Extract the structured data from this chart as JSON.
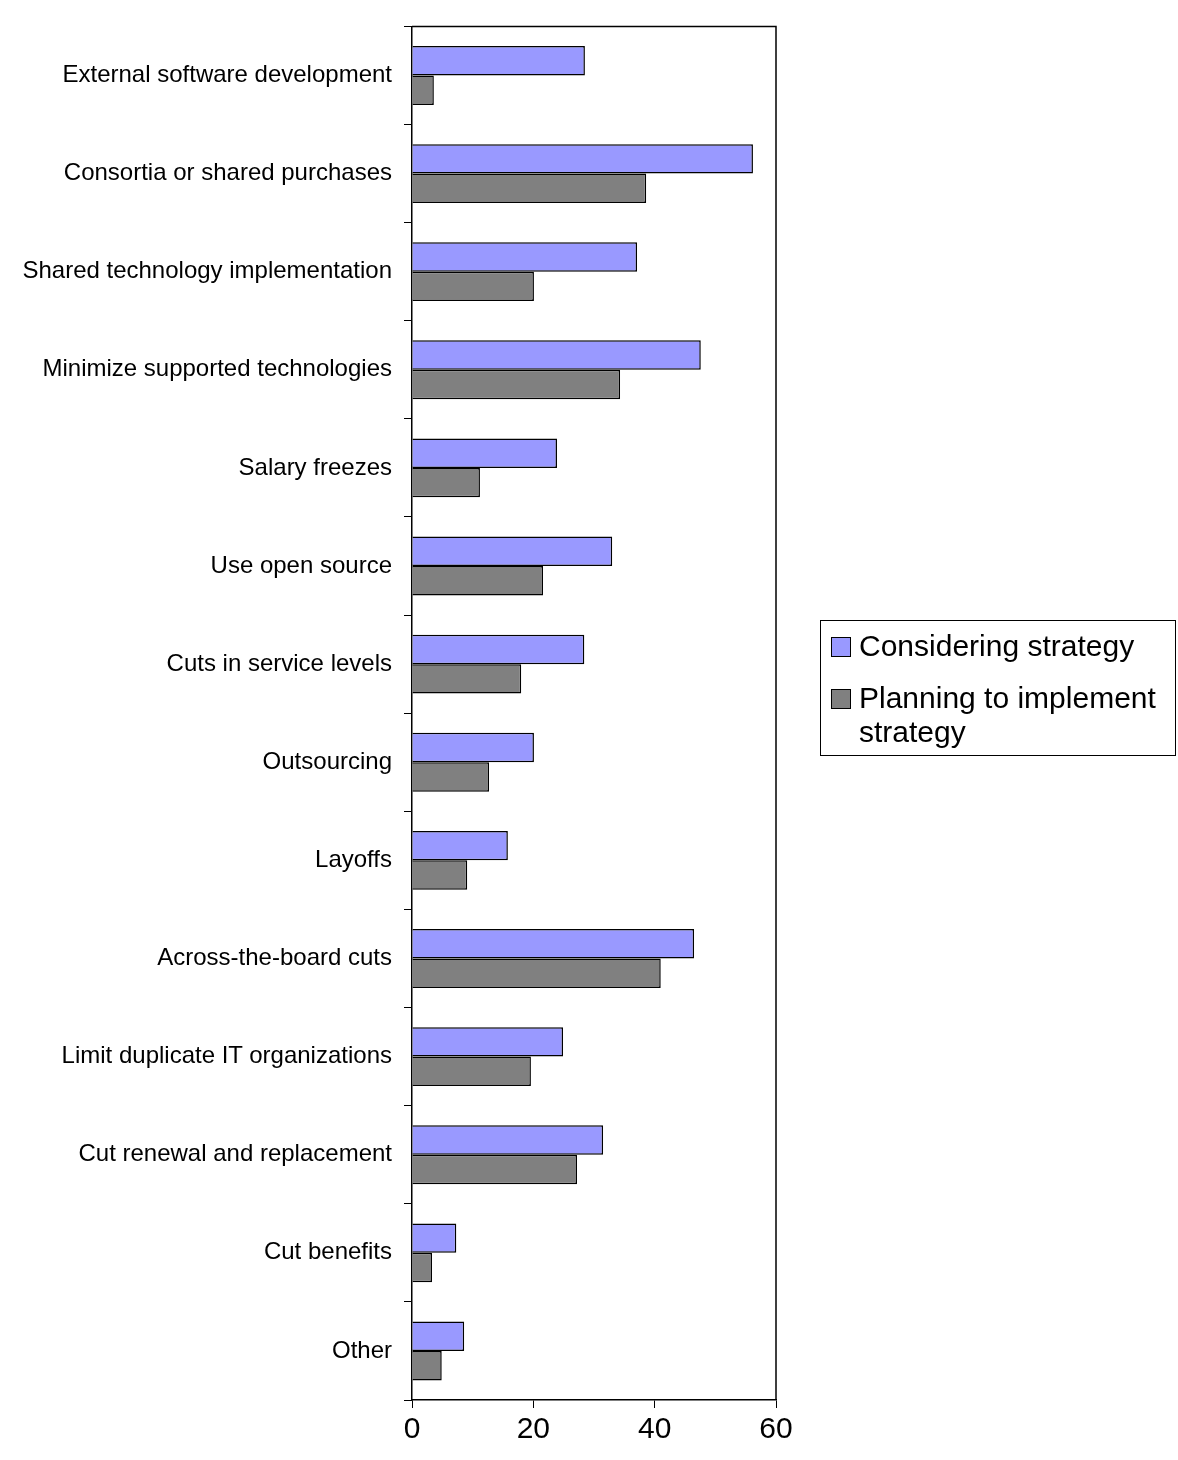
{
  "chart_data": {
    "type": "bar",
    "orientation": "horizontal",
    "categories": [
      "External software development",
      "Consortia or shared purchases",
      "Shared technology implementation",
      "Minimize supported technologies",
      "Salary freezes",
      "Use open source",
      "Cuts in service levels",
      "Outsourcing",
      "Layoffs",
      "Across-the-board cuts",
      "Limit duplicate IT organizations",
      "Cut renewal and replacement",
      "Cut benefits",
      "Other"
    ],
    "series": [
      {
        "name": "Considering strategy",
        "color": "#9999ff",
        "values": [
          28.5,
          56.2,
          37.1,
          47.6,
          23.9,
          33.0,
          28.4,
          20.1,
          15.8,
          46.5,
          24.9,
          31.5,
          7.3,
          8.6
        ]
      },
      {
        "name": "Planning to implement strategy",
        "color": "#808080",
        "values": [
          3.6,
          38.6,
          20.1,
          34.3,
          11.2,
          21.6,
          18.0,
          12.7,
          9.1,
          41.0,
          19.6,
          27.2,
          3.3,
          4.9
        ]
      }
    ],
    "xlim": [
      0,
      60
    ],
    "xticks": [
      0,
      20,
      40,
      60
    ],
    "grid": false,
    "legend": "right"
  }
}
